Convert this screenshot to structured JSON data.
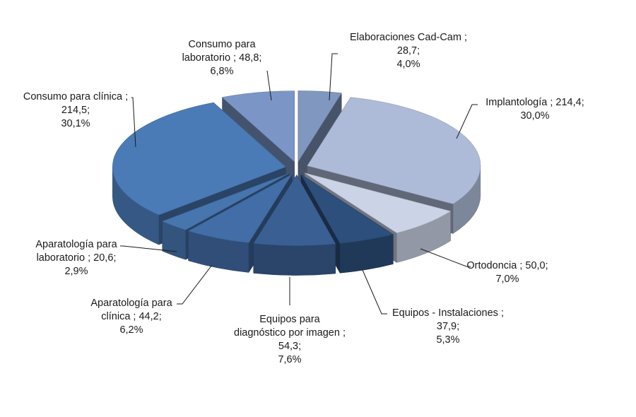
{
  "chart_data": {
    "type": "pie",
    "title": "",
    "style": "3d-exploded",
    "slices": [
      {
        "name": "Elaboraciones Cad-Cam",
        "value": 28.7,
        "percent": "4,0%",
        "value_text": "28,7",
        "color": "#8097bf",
        "label_lines": [
          "Elaboraciones Cad-Cam ;",
          "28,7;",
          "4,0%"
        ]
      },
      {
        "name": "Implantología",
        "value": 214.4,
        "percent": "30,0%",
        "value_text": "214,4",
        "color": "#aebbd8",
        "label_lines": [
          "Implantología ; 214,4;",
          "30,0%"
        ]
      },
      {
        "name": "Ortodoncia",
        "value": 50.0,
        "percent": "7,0%",
        "value_text": "50,0",
        "color": "#cbd3e6",
        "label_lines": [
          "Ortodoncia ; 50,0;",
          "7,0%"
        ]
      },
      {
        "name": "Equipos - Instalaciones",
        "value": 37.9,
        "percent": "5,3%",
        "value_text": "37,9",
        "color": "#2d4f7c",
        "label_lines": [
          "Equipos - Instalaciones ;",
          "37,9;",
          "5,3%"
        ]
      },
      {
        "name": "Equipos para diagnóstico por imagen",
        "value": 54.3,
        "percent": "7,6%",
        "value_text": "54,3",
        "color": "#3a5f93",
        "label_lines": [
          "Equipos para",
          "diagnóstico por imagen ;",
          "54,3;",
          "7,6%"
        ]
      },
      {
        "name": "Aparatología para clínica",
        "value": 44.2,
        "percent": "6,2%",
        "value_text": "44,2",
        "color": "#426da6",
        "label_lines": [
          "Aparatología para",
          "clínica ; 44,2;",
          "6,2%"
        ]
      },
      {
        "name": "Aparatología para laboratorio",
        "value": 20.6,
        "percent": "2,9%",
        "value_text": "20,6",
        "color": "#4775ad",
        "label_lines": [
          "Aparatología para",
          "laboratorio ; 20,6;",
          "2,9%"
        ]
      },
      {
        "name": "Consumo para clínica",
        "value": 214.5,
        "percent": "30,1%",
        "value_text": "214,5",
        "color": "#4a7bb7",
        "label_lines": [
          "Consumo para clínica ;",
          "214,5;",
          "30,1%"
        ]
      },
      {
        "name": "Consumo para laboratorio",
        "value": 48.8,
        "percent": "6,8%",
        "value_text": "48,8",
        "color": "#7b96c6",
        "label_lines": [
          "Consumo para",
          "laboratorio ; 48,8;",
          "6,8%"
        ]
      }
    ]
  }
}
